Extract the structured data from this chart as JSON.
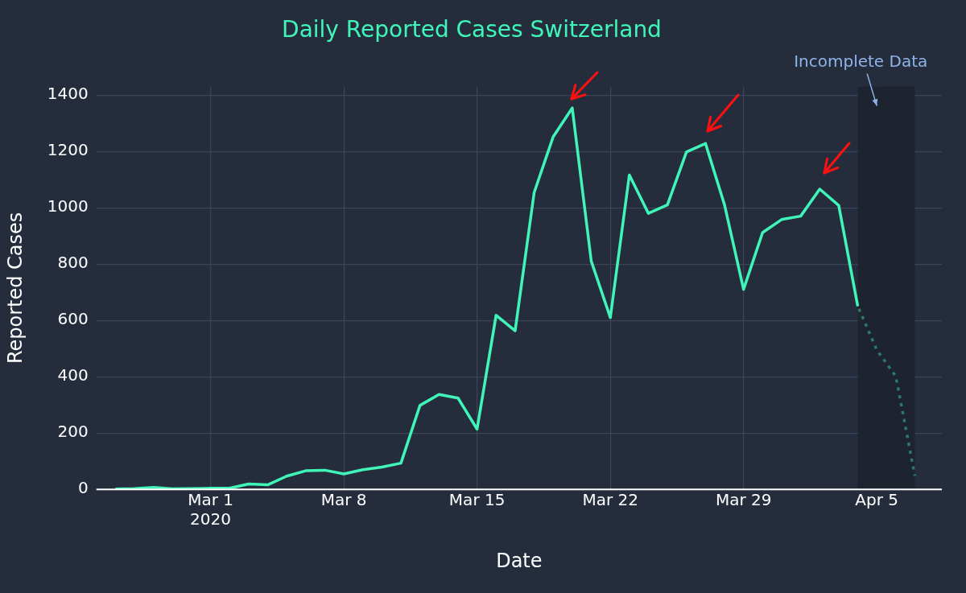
{
  "chart_data": {
    "type": "line",
    "title": "Daily Reported Cases Switzerland",
    "xlabel": "Date",
    "ylabel": "Reported Cases",
    "series": [
      {
        "color": "#3ff5b8",
        "line_style": "solid",
        "x": [
          "2020-02-25",
          "2020-02-26",
          "2020-02-27",
          "2020-02-28",
          "2020-02-29",
          "2020-03-01",
          "2020-03-02",
          "2020-03-03",
          "2020-03-04",
          "2020-03-05",
          "2020-03-06",
          "2020-03-07",
          "2020-03-08",
          "2020-03-09",
          "2020-03-10",
          "2020-03-11",
          "2020-03-12",
          "2020-03-13",
          "2020-03-14",
          "2020-03-15",
          "2020-03-16",
          "2020-03-17",
          "2020-03-18",
          "2020-03-19",
          "2020-03-20",
          "2020-03-21",
          "2020-03-22",
          "2020-03-23",
          "2020-03-24",
          "2020-03-25",
          "2020-03-26",
          "2020-03-27",
          "2020-03-28",
          "2020-03-29",
          "2020-03-30",
          "2020-03-31",
          "2020-04-01",
          "2020-04-02",
          "2020-04-03",
          "2020-04-04"
        ],
        "values": [
          1,
          3,
          7,
          2,
          3,
          4,
          4,
          19,
          16,
          47,
          66,
          68,
          55,
          70,
          79,
          93,
          298,
          337,
          324,
          214,
          618,
          563,
          1054,
          1252,
          1354,
          810,
          610,
          1116,
          980,
          1010,
          1198,
          1228,
          1010,
          710,
          912,
          958,
          970,
          1066,
          1008,
          650
        ]
      },
      {
        "color": "#2a7a66",
        "line_style": "dotted",
        "x": [
          "2020-04-04",
          "2020-04-05",
          "2020-04-06",
          "2020-04-07"
        ],
        "values": [
          650,
          495,
          401,
          48
        ]
      }
    ],
    "bands": [
      {
        "axis": "x",
        "from": "2020-04-04",
        "to": "2020-04-07",
        "label": "Incomplete Data",
        "color": "#1e2330"
      }
    ],
    "xlim": [
      "2020-02-24",
      "2020-04-08T10:00"
    ],
    "xticks": [
      {
        "value": "2020-03-01",
        "label": "Mar 1\n2020"
      },
      {
        "value": "2020-03-08",
        "label": "Mar 8"
      },
      {
        "value": "2020-03-15",
        "label": "Mar 15"
      },
      {
        "value": "2020-03-22",
        "label": "Mar 22"
      },
      {
        "value": "2020-03-29",
        "label": "Mar 29"
      },
      {
        "value": "2020-04-05",
        "label": "Apr 5"
      }
    ],
    "ylim": [
      0,
      1430
    ],
    "yticks": [
      0,
      200,
      400,
      600,
      800,
      1000,
      1200,
      1400
    ],
    "grid": true,
    "legend": false,
    "marker": "none"
  }
}
